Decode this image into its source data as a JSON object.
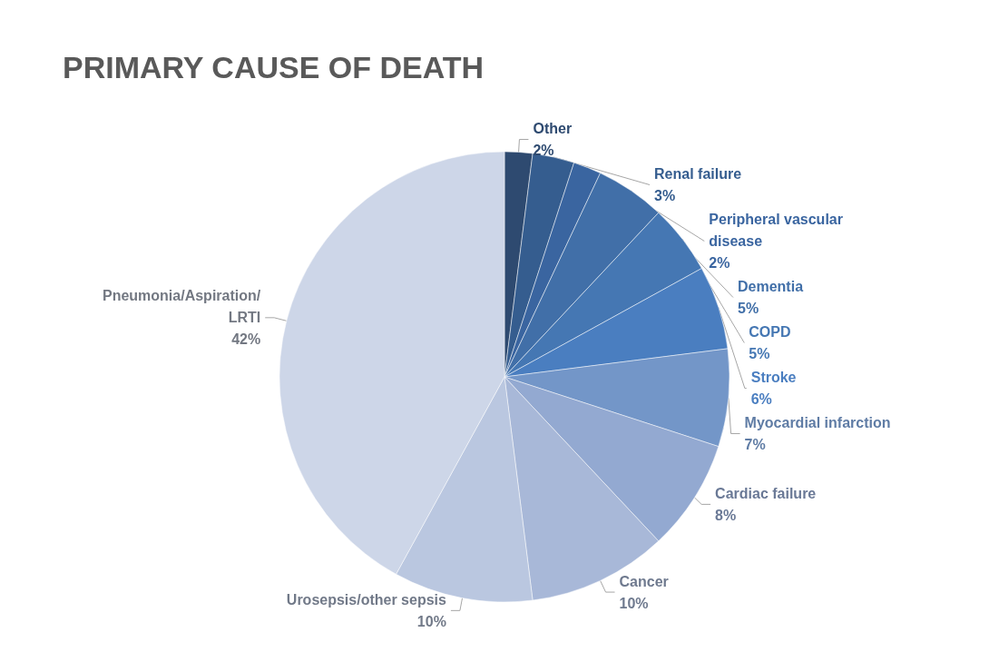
{
  "chart_data": {
    "type": "pie",
    "title": "PRIMARY CAUSE OF DEATH",
    "categories": [
      "Other",
      "Renal failure",
      "Peripheral vascular disease",
      "Dementia",
      "COPD",
      "Stroke",
      "Myocardial infarction",
      "Cardiac failure",
      "Cancer",
      "Urosepsis/other sepsis",
      "Pneumonia/Aspiration/LRTI"
    ],
    "values": [
      2,
      3,
      2,
      5,
      5,
      6,
      7,
      8,
      10,
      10,
      42
    ],
    "value_labels": [
      "2%",
      "3%",
      "2%",
      "5%",
      "5%",
      "6%",
      "7%",
      "8%",
      "10%",
      "10%",
      "42%"
    ],
    "colors": [
      "#2e4a70",
      "#355d8f",
      "#3a65a0",
      "#416fa8",
      "#4577b3",
      "#4a7ec0",
      "#7396c8",
      "#93a9d1",
      "#a8b8d8",
      "#bac7e0",
      "#cdd6e8"
    ],
    "legend": false
  }
}
